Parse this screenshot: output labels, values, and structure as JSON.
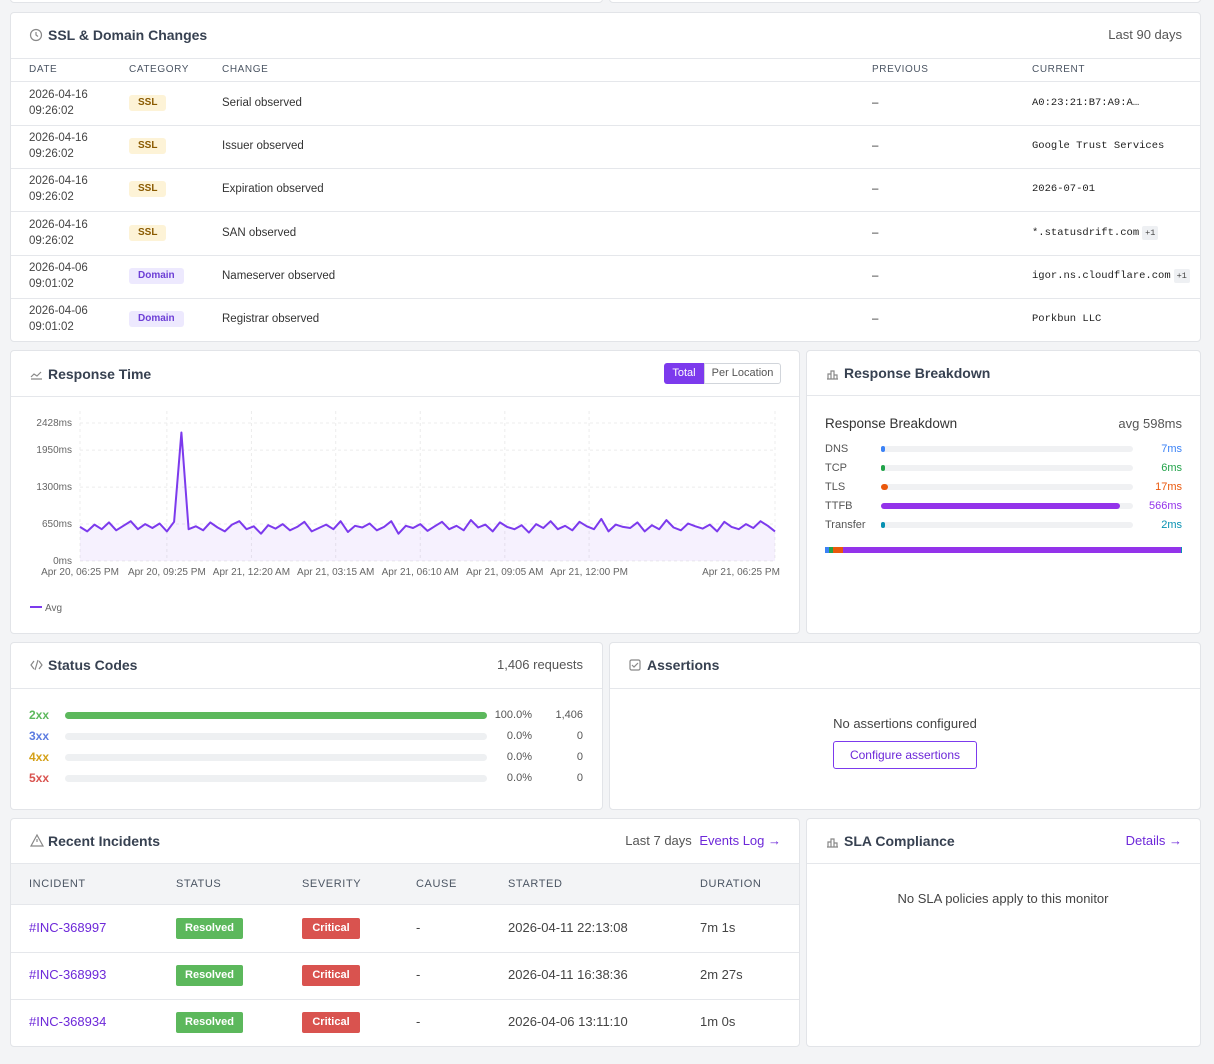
{
  "ssl_domain_changes": {
    "title": "SSL & Domain Changes",
    "period": "Last 90 days",
    "columns": [
      "DATE",
      "CATEGORY",
      "CHANGE",
      "PREVIOUS",
      "CURRENT"
    ],
    "rows": [
      {
        "date": "2026-04-16",
        "time": "09:26:02",
        "category": "SSL",
        "change": "Serial observed",
        "previous": "–",
        "current": "A0:23:21:B7:A9:A…"
      },
      {
        "date": "2026-04-16",
        "time": "09:26:02",
        "category": "SSL",
        "change": "Issuer observed",
        "previous": "–",
        "current": "Google Trust Services"
      },
      {
        "date": "2026-04-16",
        "time": "09:26:02",
        "category": "SSL",
        "change": "Expiration observed",
        "previous": "–",
        "current": "2026-07-01"
      },
      {
        "date": "2026-04-16",
        "time": "09:26:02",
        "category": "SSL",
        "change": "SAN observed",
        "previous": "–",
        "current": "*.statusdrift.com",
        "current_extra": "+1"
      },
      {
        "date": "2026-04-06",
        "time": "09:01:02",
        "category": "Domain",
        "change": "Nameserver observed",
        "previous": "–",
        "current": "igor.ns.cloudflare.com",
        "current_extra": "+1"
      },
      {
        "date": "2026-04-06",
        "time": "09:01:02",
        "category": "Domain",
        "change": "Registrar observed",
        "previous": "–",
        "current": "Porkbun LLC"
      }
    ]
  },
  "response_time": {
    "title": "Response Time",
    "toggle": [
      "Total",
      "Per Location"
    ],
    "chart": {
      "type": "line",
      "xlim": [
        0,
        24
      ],
      "xticks": [
        {
          "value": 0,
          "label": "Apr 20, 06:25 PM"
        },
        {
          "value": 3,
          "label": "Apr 20, 09:25 PM"
        },
        {
          "value": 5.92,
          "label": "Apr 21, 12:20 AM"
        },
        {
          "value": 8.83,
          "label": "Apr 21, 03:15 AM"
        },
        {
          "value": 11.75,
          "label": "Apr 21, 06:10 AM"
        },
        {
          "value": 14.67,
          "label": "Apr 21, 09:05 AM"
        },
        {
          "value": 17.58,
          "label": "Apr 21, 12:00 PM"
        },
        {
          "value": 24,
          "label": "Apr 21, 06:25 PM"
        }
      ],
      "ylim": [
        0,
        2428
      ],
      "yticks": [
        {
          "value": 0,
          "label": "0ms"
        },
        {
          "value": 650,
          "label": "650ms"
        },
        {
          "value": 1300,
          "label": "1300ms"
        },
        {
          "value": 1950,
          "label": "1950ms"
        },
        {
          "value": 2428,
          "label": "2428ms"
        }
      ],
      "grid": true,
      "x": [
        0,
        0.25,
        0.5,
        0.75,
        1,
        1.25,
        1.5,
        1.75,
        2,
        2.25,
        2.5,
        2.75,
        3,
        3.25,
        3.5,
        3.75,
        4,
        4.25,
        4.5,
        4.75,
        5,
        5.25,
        5.5,
        5.75,
        6,
        6.25,
        6.5,
        6.75,
        7,
        7.25,
        7.5,
        7.75,
        8,
        8.25,
        8.5,
        8.75,
        9,
        9.25,
        9.5,
        9.75,
        10,
        10.25,
        10.5,
        10.75,
        11,
        11.25,
        11.5,
        11.75,
        12,
        12.25,
        12.5,
        12.75,
        13,
        13.25,
        13.5,
        13.75,
        14,
        14.25,
        14.5,
        14.75,
        15,
        15.25,
        15.5,
        15.75,
        16,
        16.25,
        16.5,
        16.75,
        17,
        17.25,
        17.5,
        17.75,
        18,
        18.25,
        18.5,
        18.75,
        19,
        19.25,
        19.5,
        19.75,
        20,
        20.25,
        20.5,
        20.75,
        21,
        21.25,
        21.5,
        21.75,
        22,
        22.25,
        22.5,
        22.75,
        23,
        23.25,
        23.5,
        23.75,
        24
      ],
      "series": [
        {
          "name": "Avg",
          "color": "#7c3aed",
          "values": [
            600,
            520,
            640,
            560,
            680,
            540,
            620,
            700,
            560,
            650,
            580,
            660,
            520,
            690,
            2260,
            560,
            610,
            540,
            680,
            590,
            520,
            640,
            700,
            560,
            610,
            480,
            630,
            570,
            650,
            540,
            600,
            690,
            520,
            580,
            640,
            560,
            700,
            510,
            620,
            590,
            660,
            540,
            600,
            700,
            480,
            620,
            580,
            650,
            530,
            610,
            690,
            560,
            620,
            540,
            720,
            590,
            640,
            520,
            680,
            600,
            560,
            630,
            500,
            650,
            580,
            700,
            560,
            620,
            540,
            690,
            610,
            560,
            740,
            520,
            640,
            600,
            580,
            680,
            520,
            630,
            560,
            720,
            590,
            540,
            660,
            610,
            570,
            640,
            520,
            690,
            600,
            560,
            650,
            580,
            700,
            620,
            520
          ]
        }
      ]
    }
  },
  "response_breakdown": {
    "title": "Response Breakdown",
    "heading": "Response Breakdown",
    "avg": {
      "value": 598,
      "label": "avg 598ms"
    },
    "phases": [
      {
        "name": "DNS",
        "value": 7,
        "value_label": "7ms",
        "color": "#3b82f6"
      },
      {
        "name": "TCP",
        "value": 6,
        "value_label": "6ms",
        "color": "#22a34a"
      },
      {
        "name": "TLS",
        "value": 17,
        "value_label": "17ms",
        "color": "#ea580c"
      },
      {
        "name": "TTFB",
        "value": 566,
        "value_label": "566ms",
        "color": "#9333ea"
      },
      {
        "name": "Transfer",
        "value": 2,
        "value_label": "2ms",
        "color": "#0891b2"
      }
    ]
  },
  "status_codes": {
    "title": "Status Codes",
    "total": "1,406 requests",
    "codes": [
      {
        "code": "2xx",
        "percent": 100,
        "percent_label": "100.0%",
        "count": "1,406",
        "color": "#5cb85c"
      },
      {
        "code": "3xx",
        "percent": 0,
        "percent_label": "0.0%",
        "count": "0",
        "color": "#5b7be0"
      },
      {
        "code": "4xx",
        "percent": 0,
        "percent_label": "0.0%",
        "count": "0",
        "color": "#d4a017"
      },
      {
        "code": "5xx",
        "percent": 0,
        "percent_label": "0.0%",
        "count": "0",
        "color": "#d9534f"
      }
    ]
  },
  "assertions": {
    "title": "Assertions",
    "empty": "No assertions configured",
    "button": "Configure assertions"
  },
  "recent_incidents": {
    "title": "Recent Incidents",
    "period": "Last 7 days",
    "link": "Events Log →",
    "columns": [
      "INCIDENT",
      "STATUS",
      "SEVERITY",
      "CAUSE",
      "STARTED",
      "DURATION"
    ],
    "rows": [
      {
        "id": "#INC-368997",
        "status": "Resolved",
        "severity": "Critical",
        "cause": "-",
        "started": "2026-04-11 22:13:08",
        "duration": "7m 1s"
      },
      {
        "id": "#INC-368993",
        "status": "Resolved",
        "severity": "Critical",
        "cause": "-",
        "started": "2026-04-11 16:38:36",
        "duration": "2m 27s"
      },
      {
        "id": "#INC-368934",
        "status": "Resolved",
        "severity": "Critical",
        "cause": "-",
        "started": "2026-04-06 13:11:10",
        "duration": "1m 0s"
      }
    ]
  },
  "sla_compliance": {
    "title": "SLA Compliance",
    "link": "Details →",
    "empty": "No SLA policies apply to this monitor"
  }
}
